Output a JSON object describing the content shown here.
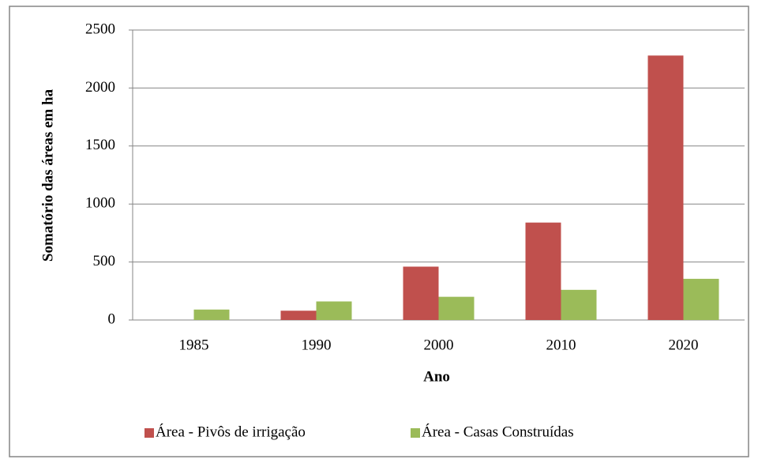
{
  "chart_data": {
    "type": "bar",
    "x_label": "Ano",
    "y_label": "Somatório das áreas em ha",
    "categories": [
      "1985",
      "1990",
      "2000",
      "2010",
      "2020"
    ],
    "series": [
      {
        "name": "Área - Pivôs de irrigação",
        "color": "#c0504d",
        "values": [
          0,
          80,
          460,
          840,
          2280
        ]
      },
      {
        "name": "Área - Casas Construídas",
        "color": "#9bbb59",
        "values": [
          90,
          160,
          200,
          260,
          355
        ]
      }
    ],
    "ylim": [
      0,
      2500
    ],
    "yticks": [
      0,
      500,
      1000,
      1500,
      2000,
      2500
    ],
    "grid": true,
    "legend": "bottom"
  }
}
